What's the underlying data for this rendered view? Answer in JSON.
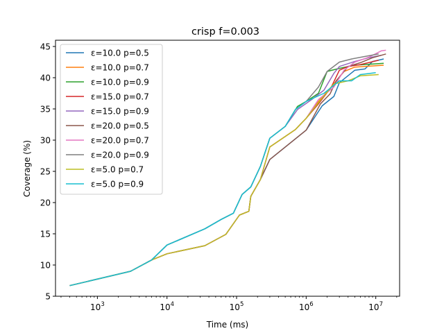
{
  "chart_data": {
    "type": "line",
    "title": "crisp f=0.003",
    "xlabel": "Time (ms)",
    "ylabel": "Coverage (%)",
    "xscale": "log",
    "xlim": [
      250,
      22000000
    ],
    "ylim": [
      5,
      46
    ],
    "yticks": [
      5,
      10,
      15,
      20,
      25,
      30,
      35,
      40,
      45
    ],
    "xticks": [
      {
        "value": 1000,
        "base": "10",
        "exp": "3"
      },
      {
        "value": 10000,
        "base": "10",
        "exp": "4"
      },
      {
        "value": 100000,
        "base": "10",
        "exp": "5"
      },
      {
        "value": 1000000,
        "base": "10",
        "exp": "6"
      },
      {
        "value": 10000000,
        "base": "10",
        "exp": "7"
      }
    ],
    "grid": false,
    "legend_position": "upper-left",
    "series": [
      {
        "name": "ε=10.0 p=0.5",
        "color": "#1f77b4",
        "points": [
          [
            400,
            6.7
          ],
          [
            3000,
            9.0
          ],
          [
            6000,
            10.8
          ],
          [
            10000,
            11.8
          ],
          [
            35000,
            13.1
          ],
          [
            70000,
            14.9
          ],
          [
            110000,
            18.0
          ],
          [
            150000,
            18.6
          ],
          [
            160000,
            21.0
          ],
          [
            220000,
            23.7
          ],
          [
            300000,
            26.9
          ],
          [
            1000000,
            31.6
          ],
          [
            1700000,
            35.5
          ],
          [
            2500000,
            37.0
          ],
          [
            3000000,
            39.2
          ],
          [
            5000000,
            41.2
          ],
          [
            7000000,
            41.4
          ],
          [
            9000000,
            42.6
          ],
          [
            13000000,
            43.0
          ]
        ]
      },
      {
        "name": "ε=10.0 p=0.7",
        "color": "#ff7f0e",
        "points": [
          [
            400,
            6.7
          ],
          [
            3000,
            9.0
          ],
          [
            6000,
            10.8
          ],
          [
            10000,
            11.8
          ],
          [
            35000,
            13.1
          ],
          [
            70000,
            14.9
          ],
          [
            110000,
            18.0
          ],
          [
            150000,
            18.6
          ],
          [
            160000,
            21.0
          ],
          [
            220000,
            23.7
          ],
          [
            300000,
            28.9
          ],
          [
            700000,
            31.7
          ],
          [
            1000000,
            33.5
          ],
          [
            1500000,
            36.2
          ],
          [
            2500000,
            39.0
          ],
          [
            3500000,
            41.0
          ],
          [
            5000000,
            41.7
          ],
          [
            13000000,
            42.0
          ]
        ]
      },
      {
        "name": "ε=10.0 p=0.9",
        "color": "#2ca02c",
        "points": [
          [
            400,
            6.7
          ],
          [
            3000,
            9.0
          ],
          [
            6000,
            10.8
          ],
          [
            10000,
            13.2
          ],
          [
            35000,
            15.8
          ],
          [
            60000,
            17.3
          ],
          [
            90000,
            18.3
          ],
          [
            120000,
            21.3
          ],
          [
            160000,
            22.5
          ],
          [
            220000,
            25.8
          ],
          [
            300000,
            30.3
          ],
          [
            500000,
            32.2
          ],
          [
            750000,
            35.4
          ],
          [
            1000000,
            36.2
          ],
          [
            1500000,
            37.5
          ],
          [
            2000000,
            41.0
          ],
          [
            3000000,
            41.5
          ],
          [
            5000000,
            42.0
          ],
          [
            13000000,
            42.3
          ]
        ]
      },
      {
        "name": "ε=15.0 p=0.7",
        "color": "#d62728",
        "points": [
          [
            400,
            6.7
          ],
          [
            3000,
            9.0
          ],
          [
            6000,
            10.8
          ],
          [
            10000,
            11.8
          ],
          [
            35000,
            13.1
          ],
          [
            70000,
            14.9
          ],
          [
            110000,
            18.0
          ],
          [
            150000,
            18.6
          ],
          [
            160000,
            21.0
          ],
          [
            220000,
            23.7
          ],
          [
            300000,
            28.9
          ],
          [
            700000,
            31.7
          ],
          [
            1000000,
            33.5
          ],
          [
            1500000,
            35.8
          ],
          [
            2300000,
            38.5
          ],
          [
            3000000,
            41.2
          ],
          [
            4000000,
            41.8
          ],
          [
            6000000,
            42.1
          ],
          [
            11000000,
            42.8
          ]
        ]
      },
      {
        "name": "ε=15.0 p=0.9",
        "color": "#9467bd",
        "points": [
          [
            400,
            6.7
          ],
          [
            3000,
            9.0
          ],
          [
            6000,
            10.8
          ],
          [
            10000,
            13.2
          ],
          [
            35000,
            15.8
          ],
          [
            60000,
            17.3
          ],
          [
            90000,
            18.3
          ],
          [
            120000,
            21.3
          ],
          [
            160000,
            22.5
          ],
          [
            220000,
            25.8
          ],
          [
            300000,
            30.3
          ],
          [
            500000,
            32.2
          ],
          [
            750000,
            34.9
          ],
          [
            1200000,
            36.5
          ],
          [
            1800000,
            38.0
          ],
          [
            2500000,
            40.7
          ],
          [
            3000000,
            41.8
          ],
          [
            5000000,
            42.6
          ],
          [
            8000000,
            43.2
          ],
          [
            12000000,
            43.6
          ]
        ]
      },
      {
        "name": "ε=20.0 p=0.5",
        "color": "#8c564b",
        "points": [
          [
            400,
            6.7
          ],
          [
            3000,
            9.0
          ],
          [
            6000,
            10.8
          ],
          [
            10000,
            11.8
          ],
          [
            35000,
            13.1
          ],
          [
            70000,
            14.9
          ],
          [
            110000,
            18.0
          ],
          [
            150000,
            18.6
          ],
          [
            160000,
            21.0
          ],
          [
            220000,
            23.7
          ],
          [
            300000,
            26.9
          ],
          [
            1000000,
            31.6
          ],
          [
            1600000,
            35.8
          ],
          [
            2200000,
            37.4
          ],
          [
            2700000,
            39.5
          ],
          [
            4000000,
            41.8
          ],
          [
            6000000,
            42.4
          ],
          [
            9000000,
            43.2
          ],
          [
            14000000,
            43.8
          ]
        ]
      },
      {
        "name": "ε=20.0 p=0.7",
        "color": "#e377c2",
        "points": [
          [
            400,
            6.7
          ],
          [
            3000,
            9.0
          ],
          [
            6000,
            10.8
          ],
          [
            10000,
            11.8
          ],
          [
            35000,
            13.1
          ],
          [
            70000,
            14.9
          ],
          [
            110000,
            18.0
          ],
          [
            150000,
            18.6
          ],
          [
            160000,
            21.0
          ],
          [
            220000,
            23.7
          ],
          [
            300000,
            28.9
          ],
          [
            700000,
            31.7
          ],
          [
            1000000,
            33.5
          ],
          [
            1500000,
            36.5
          ],
          [
            2500000,
            38.5
          ],
          [
            3500000,
            41.2
          ],
          [
            5000000,
            42.5
          ],
          [
            8000000,
            43.3
          ],
          [
            12000000,
            44.3
          ],
          [
            14000000,
            44.4
          ]
        ]
      },
      {
        "name": "ε=20.0 p=0.9",
        "color": "#7f7f7f",
        "points": [
          [
            400,
            6.7
          ],
          [
            3000,
            9.0
          ],
          [
            6000,
            10.8
          ],
          [
            10000,
            13.2
          ],
          [
            35000,
            15.8
          ],
          [
            60000,
            17.3
          ],
          [
            90000,
            18.3
          ],
          [
            120000,
            21.3
          ],
          [
            160000,
            22.5
          ],
          [
            220000,
            25.8
          ],
          [
            300000,
            30.3
          ],
          [
            500000,
            32.2
          ],
          [
            700000,
            34.9
          ],
          [
            1000000,
            36.2
          ],
          [
            1500000,
            38.5
          ],
          [
            2000000,
            41.0
          ],
          [
            3000000,
            42.5
          ],
          [
            4500000,
            43.0
          ],
          [
            7000000,
            43.4
          ],
          [
            11000000,
            43.8
          ]
        ]
      },
      {
        "name": "ε=5.0 p=0.7",
        "color": "#bcbd22",
        "points": [
          [
            400,
            6.7
          ],
          [
            3000,
            9.0
          ],
          [
            6000,
            10.8
          ],
          [
            10000,
            11.8
          ],
          [
            35000,
            13.1
          ],
          [
            70000,
            14.9
          ],
          [
            110000,
            18.0
          ],
          [
            150000,
            18.6
          ],
          [
            160000,
            21.0
          ],
          [
            220000,
            23.7
          ],
          [
            300000,
            28.9
          ],
          [
            700000,
            31.7
          ],
          [
            1000000,
            33.5
          ],
          [
            1500000,
            36.0
          ],
          [
            2500000,
            39.0
          ],
          [
            4000000,
            39.5
          ],
          [
            6000000,
            40.3
          ],
          [
            11000000,
            40.5
          ]
        ]
      },
      {
        "name": "ε=5.0 p=0.9",
        "color": "#17becf",
        "points": [
          [
            400,
            6.7
          ],
          [
            3000,
            9.0
          ],
          [
            6000,
            10.8
          ],
          [
            10000,
            13.2
          ],
          [
            35000,
            15.8
          ],
          [
            60000,
            17.3
          ],
          [
            90000,
            18.3
          ],
          [
            120000,
            21.3
          ],
          [
            160000,
            22.5
          ],
          [
            220000,
            25.8
          ],
          [
            300000,
            30.3
          ],
          [
            500000,
            32.2
          ],
          [
            700000,
            34.9
          ],
          [
            1000000,
            36.2
          ],
          [
            1800000,
            37.5
          ],
          [
            3000000,
            39.5
          ],
          [
            4500000,
            39.5
          ],
          [
            6000000,
            40.5
          ],
          [
            10000000,
            40.8
          ]
        ]
      }
    ]
  }
}
